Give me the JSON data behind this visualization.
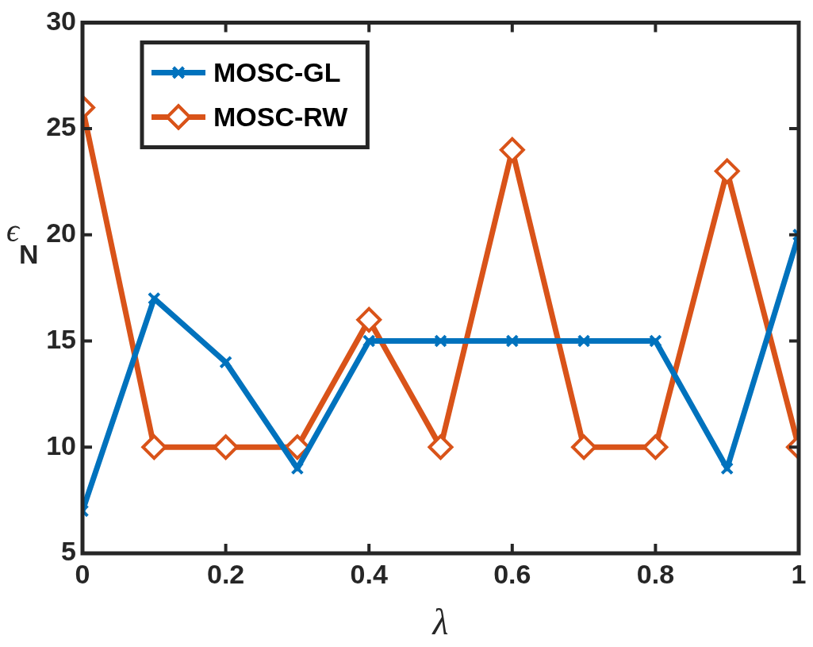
{
  "chart_data": {
    "type": "line",
    "xlabel": "λ",
    "ylabel": "ϵ$_{N}$",
    "x": [
      0,
      0.1,
      0.2,
      0.3,
      0.4,
      0.5,
      0.6,
      0.7,
      0.8,
      0.9,
      1
    ],
    "xlim": [
      0,
      1
    ],
    "xticks": [
      0,
      {
        "value": 0.2,
        "label": "0.2"
      },
      {
        "value": 0.4,
        "label": "0.4"
      },
      {
        "value": 0.6,
        "label": "0.6"
      },
      {
        "value": 0.8,
        "label": "0.8"
      },
      1
    ],
    "ylim": [
      5,
      30
    ],
    "yticks": [
      5,
      10,
      15,
      20,
      25,
      30
    ],
    "grid": false,
    "legend": "top left",
    "line_style": "solid",
    "series": [
      {
        "name": "MOSC-GL",
        "color": "#0072bd",
        "marker": "cross",
        "values": [
          7,
          17,
          14,
          9,
          15,
          15,
          15,
          15,
          15,
          9,
          20
        ]
      },
      {
        "name": "MOSC-RW",
        "color": "#d95319",
        "marker": "diamond",
        "values": [
          26,
          10,
          10,
          10,
          16,
          10,
          24,
          10,
          10,
          23,
          10
        ]
      }
    ]
  }
}
